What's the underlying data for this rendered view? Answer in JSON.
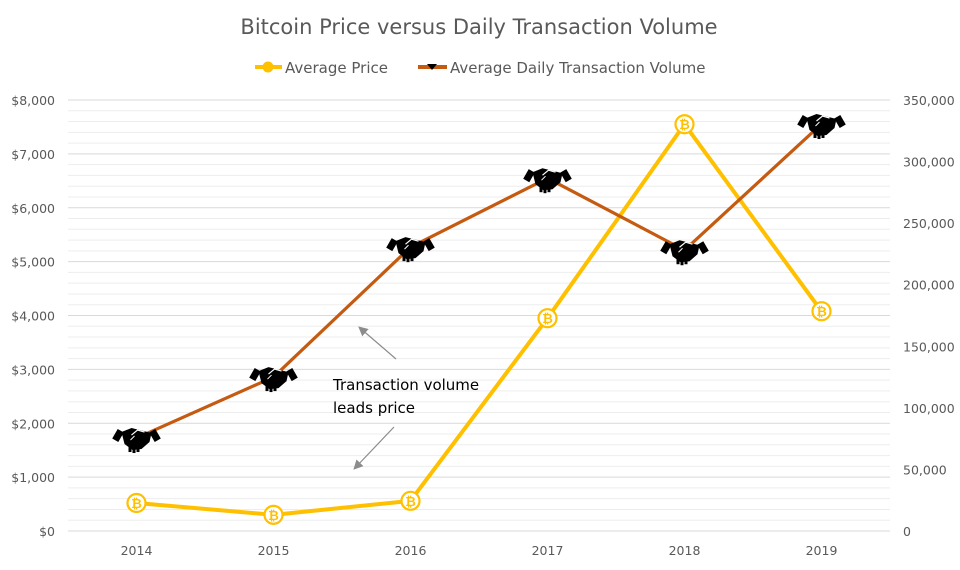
{
  "chart_data": {
    "type": "line",
    "title": "Bitcoin Price versus Daily Transaction Volume",
    "xlabel": "",
    "ylabel": "",
    "y2label": "",
    "categories": [
      "2014",
      "2015",
      "2016",
      "2017",
      "2018",
      "2019"
    ],
    "series": [
      {
        "name": "Average Price",
        "axis": "left",
        "color": "#FFC000",
        "marker": "bitcoin-icon",
        "values": [
          520,
          300,
          560,
          3950,
          7550,
          4080
        ]
      },
      {
        "name": "Average Daily Transaction Volume",
        "axis": "right",
        "color": "#C55A11",
        "marker": "handshake-icon",
        "values": [
          75500,
          125000,
          230500,
          286500,
          228000,
          330500
        ]
      }
    ],
    "ylim": [
      0,
      8000
    ],
    "y_ticks": [
      "$0",
      "$1,000",
      "$2,000",
      "$3,000",
      "$4,000",
      "$5,000",
      "$6,000",
      "$7,000",
      "$8,000"
    ],
    "y_tick_values": [
      0,
      1000,
      2000,
      3000,
      4000,
      5000,
      6000,
      7000,
      8000
    ],
    "y_minor_step": 200,
    "y2lim": [
      0,
      350000
    ],
    "y2_ticks": [
      "0",
      "50,000",
      "100,000",
      "150,000",
      "200,000",
      "250,000",
      "300,000",
      "350,000"
    ],
    "y2_tick_values": [
      0,
      50000,
      100000,
      150000,
      200000,
      250000,
      300000,
      350000
    ],
    "grid": true,
    "legend_position": "top",
    "annotations": [
      {
        "lines": [
          "Transaction volume",
          "leads price"
        ],
        "arrows": [
          "up-left toward volume line",
          "down-left toward price line"
        ]
      }
    ]
  },
  "colors": {
    "gridline_major": "#d9d9d9",
    "gridline_minor": "#ededed",
    "text": "#595959",
    "annotation_arrow": "#8c8c8c"
  }
}
